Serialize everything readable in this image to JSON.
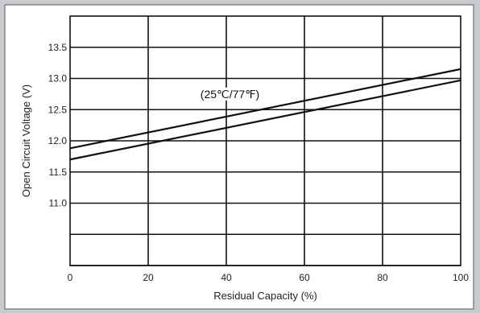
{
  "chart_data": {
    "type": "line",
    "title": "",
    "xlabel": "Residual Capacity (%)",
    "ylabel": "Open Circuit Voltage (V)",
    "xlim": [
      0,
      100
    ],
    "ylim": [
      10.0,
      14.0
    ],
    "x_ticks": [
      0,
      20,
      40,
      60,
      80,
      100
    ],
    "x_tick_labels": [
      "0",
      "20",
      "40",
      "60",
      "80",
      "100"
    ],
    "y_grid": [
      10.0,
      10.5,
      11.0,
      11.5,
      12.0,
      12.5,
      13.0,
      13.5
    ],
    "y_tick_values": [
      11.0,
      11.5,
      12.0,
      12.5,
      13.0,
      13.5
    ],
    "y_tick_labels": [
      "11.0",
      "11.5",
      "12.0",
      "12.5",
      "13.0",
      "13.5"
    ],
    "grid": true,
    "series": [
      {
        "x": [
          0,
          100
        ],
        "y": [
          11.88,
          13.15
        ]
      },
      {
        "x": [
          0,
          100
        ],
        "y": [
          11.7,
          12.97
        ]
      }
    ],
    "annotation": {
      "text": "(25℃/77℉)",
      "x": 50,
      "y": 12.75
    }
  },
  "colors": {
    "background": "#c8ccd0",
    "panel": "#ffffff",
    "grid": "#111111",
    "line": "#111111"
  }
}
